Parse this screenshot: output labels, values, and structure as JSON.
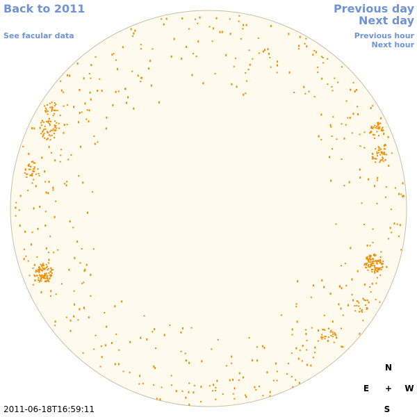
{
  "navigation": {
    "back_label": "Back to 2011",
    "previous_day_label": "Previous day",
    "next_day_label": "Next day",
    "facular_label": "See facular data",
    "previous_hour_label": "Previous hour",
    "next_hour_label": "Next hour"
  },
  "timestamp": "2011-06-18T16:59:11",
  "compass": {
    "north": "N",
    "east": "E",
    "center": "+",
    "west": "W",
    "south": "S"
  },
  "colors": {
    "link": "#6f93d8",
    "disk_fill": "#fffaee",
    "disk_border": "#c9bfa8",
    "sunspot": "#f08c00"
  },
  "icons": {
    "disk": "solar-disk",
    "markers": "magnetic-field-pixel"
  }
}
